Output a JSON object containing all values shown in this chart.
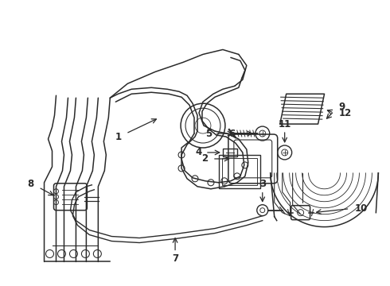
{
  "bg_color": "#ffffff",
  "line_color": "#2a2a2a",
  "lw": 1.1,
  "figsize": [
    4.9,
    3.6
  ],
  "dpi": 100,
  "xlim": [
    0,
    490
  ],
  "ylim": [
    0,
    360
  ]
}
